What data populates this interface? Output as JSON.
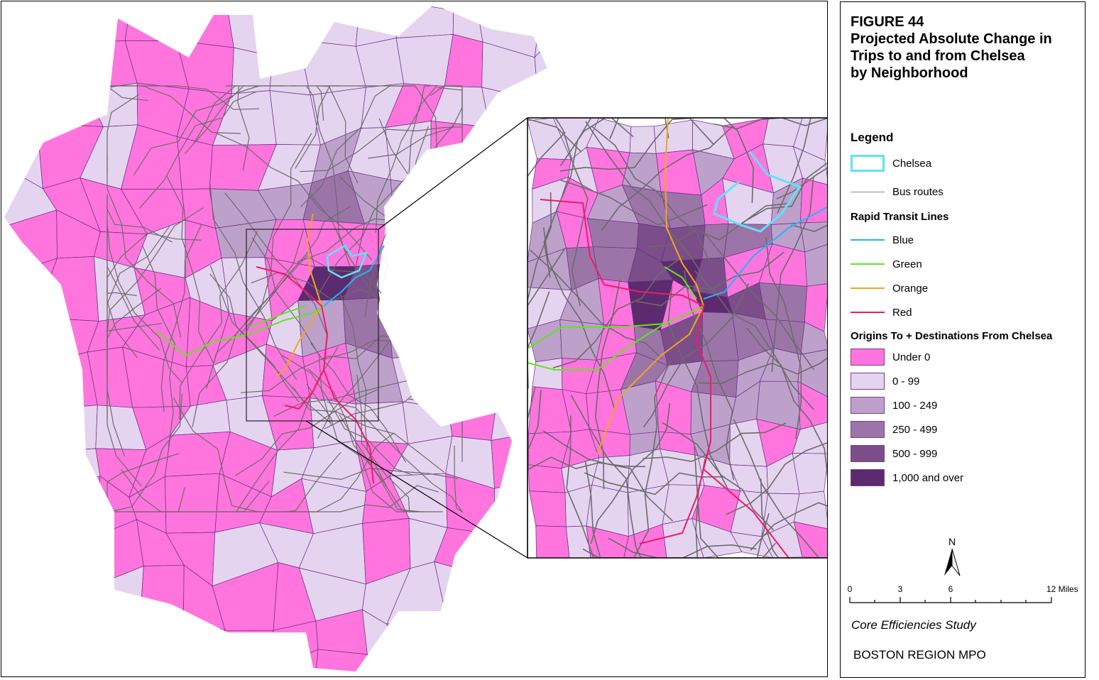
{
  "figure": {
    "number": "FIGURE 44",
    "title_lines": [
      "Projected Absolute Change in",
      "Trips to and from Chelsea",
      "by Neighborhood"
    ]
  },
  "legend": {
    "heading": "Legend",
    "chelsea": {
      "label": "Chelsea",
      "color": "#5fe3f5"
    },
    "bus": {
      "label": "Bus routes",
      "color": "#7a7a7a"
    },
    "rapid_transit_heading": "Rapid Transit Lines",
    "lines": [
      {
        "label": "Blue",
        "color": "#23b5ef"
      },
      {
        "label": "Green",
        "color": "#5fe61c"
      },
      {
        "label": "Orange",
        "color": "#f0a71e"
      },
      {
        "label": "Red",
        "color": "#f0196c"
      }
    ],
    "classes_heading": "Origins To + Destinations From Chelsea",
    "classes": [
      {
        "label": "Under 0",
        "color": "#ff75dd"
      },
      {
        "label": "0 - 99",
        "color": "#e5d4f0"
      },
      {
        "label": "100 - 249",
        "color": "#bda1cb"
      },
      {
        "label": "250 - 499",
        "color": "#9c75a8"
      },
      {
        "label": "500 - 999",
        "color": "#7b4e8a"
      },
      {
        "label": "1,000 and over",
        "color": "#5c2a6e"
      }
    ]
  },
  "north_arrow": {
    "label": "N"
  },
  "scale_bar": {
    "ticks": [
      "0",
      "3",
      "6",
      "12 Miles"
    ]
  },
  "footer": {
    "study": "Core Efficiencies Study",
    "org": "BOSTON REGION MPO"
  }
}
